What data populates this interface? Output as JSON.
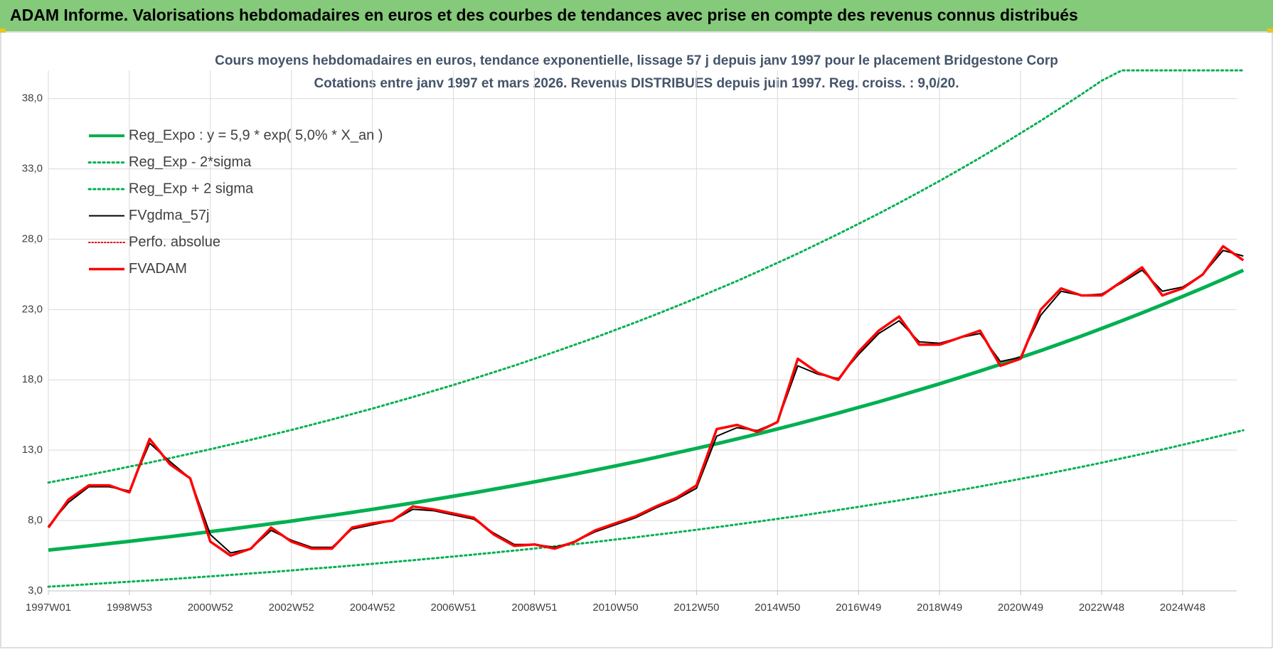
{
  "header": {
    "title": "ADAM Informe. Valorisations hebdomadaires en euros et des courbes de tendances avec prise en compte des revenus connus distribués"
  },
  "chart_data": {
    "type": "line",
    "title": "Cours moyens hebdomadaires en euros, tendance exponentielle, lissage 57 j depuis janv 1997 pour le placement Bridgestone Corp",
    "subtitle": "Cotations entre janv 1997 et mars 2026. Revenus DISTRIBUES depuis juin 1997. Reg. croiss. : 9,0/20.",
    "categories": [
      "1997W01",
      null,
      null,
      null,
      "1998W53",
      null,
      null,
      null,
      "2000W52",
      null,
      null,
      null,
      "2002W52",
      null,
      null,
      null,
      "2004W52",
      null,
      null,
      null,
      "2006W51",
      null,
      null,
      null,
      "2008W51",
      null,
      null,
      null,
      "2010W50",
      null,
      null,
      null,
      "2012W50",
      null,
      null,
      null,
      "2014W50",
      null,
      null,
      null,
      "2016W49",
      null,
      null,
      null,
      "2018W49",
      null,
      null,
      null,
      "2020W49",
      null,
      null,
      null,
      "2022W48",
      null,
      null,
      null,
      "2024W48",
      null,
      null,
      null
    ],
    "ylim": [
      3,
      40
    ],
    "yticks": [
      {
        "value": 3,
        "label": "3,0"
      },
      {
        "value": 8,
        "label": "8,0"
      },
      {
        "value": 13,
        "label": "13,0"
      },
      {
        "value": 18,
        "label": "18,0"
      },
      {
        "value": 23,
        "label": "23,0"
      },
      {
        "value": 28,
        "label": "28,0"
      },
      {
        "value": 33,
        "label": "33,0"
      },
      {
        "value": 38,
        "label": "38,0"
      }
    ],
    "grid": true,
    "legend": "top-left",
    "series": [
      {
        "name": "Reg_Expo : y = 5,9 * exp( 5,0% *  X_an )",
        "color": "#00b050",
        "style": "solid",
        "width": 5,
        "values": [
          5.9,
          6.05,
          6.2,
          6.36,
          6.52,
          6.69,
          6.85,
          7.03,
          7.21,
          7.39,
          7.58,
          7.77,
          7.96,
          8.17,
          8.37,
          8.58,
          8.8,
          9.02,
          9.25,
          9.49,
          9.73,
          9.97,
          10.23,
          10.48,
          10.75,
          11.02,
          11.3,
          11.59,
          11.88,
          12.18,
          12.49,
          12.81,
          13.13,
          13.46,
          13.8,
          14.15,
          14.51,
          14.88,
          15.26,
          15.64,
          16.04,
          16.44,
          16.86,
          17.29,
          17.72,
          18.17,
          18.63,
          19.1,
          19.59,
          20.08,
          20.59,
          21.11,
          21.65,
          22.2,
          22.76,
          23.34,
          23.93,
          24.53,
          25.15,
          25.79
        ]
      },
      {
        "name": "Reg_Exp - 2*sigma",
        "color": "#00b050",
        "style": "dotted",
        "width": 3,
        "values": [
          3.3,
          3.38,
          3.47,
          3.56,
          3.65,
          3.74,
          3.83,
          3.93,
          4.03,
          4.13,
          4.24,
          4.34,
          4.45,
          4.57,
          4.68,
          4.8,
          4.92,
          5.05,
          5.18,
          5.31,
          5.44,
          5.58,
          5.72,
          5.86,
          6.01,
          6.17,
          6.32,
          6.48,
          6.65,
          6.81,
          6.99,
          7.16,
          7.34,
          7.53,
          7.72,
          7.92,
          8.12,
          8.32,
          8.53,
          8.75,
          8.97,
          9.2,
          9.43,
          9.67,
          9.91,
          10.16,
          10.42,
          10.69,
          10.96,
          11.23,
          11.52,
          11.81,
          12.11,
          12.42,
          12.73,
          13.05,
          13.38,
          13.72,
          14.07,
          14.42
        ]
      },
      {
        "name": "Reg_Exp + 2 sigma",
        "color": "#00b050",
        "style": "dotted",
        "width": 3,
        "values": [
          10.7,
          10.97,
          11.25,
          11.53,
          11.83,
          12.12,
          12.43,
          12.75,
          13.07,
          13.4,
          13.74,
          14.09,
          14.44,
          14.81,
          15.18,
          15.57,
          15.96,
          16.37,
          16.78,
          17.21,
          17.64,
          18.09,
          18.55,
          19.01,
          19.5,
          19.99,
          20.5,
          21.01,
          21.55,
          22.09,
          22.65,
          23.23,
          23.81,
          24.42,
          25.03,
          25.67,
          26.32,
          26.98,
          27.67,
          28.37,
          29.09,
          29.82,
          30.58,
          31.35,
          32.14,
          32.96,
          33.79,
          34.65,
          35.53,
          36.42,
          37.35,
          38.29,
          39.26,
          40,
          40,
          40,
          40,
          40,
          40,
          40
        ]
      },
      {
        "name": "FVgdma_57j",
        "color": "#000000",
        "style": "solid",
        "width": 2,
        "values": [
          7.6,
          9.3,
          10.4,
          10.4,
          10.1,
          13.5,
          12.2,
          11.0,
          7.0,
          5.7,
          6.0,
          7.3,
          6.6,
          6.1,
          6.1,
          7.4,
          7.7,
          8.0,
          8.8,
          8.7,
          8.4,
          8.1,
          7.1,
          6.3,
          6.3,
          6.1,
          6.5,
          7.2,
          7.7,
          8.2,
          8.9,
          9.5,
          10.3,
          14.0,
          14.6,
          14.4,
          15.0,
          19.0,
          18.4,
          18.1,
          19.8,
          21.3,
          22.2,
          20.7,
          20.6,
          21.0,
          21.3,
          19.3,
          19.6,
          22.6,
          24.3,
          24.0,
          24.1,
          24.9,
          25.8,
          24.3,
          24.6,
          25.5,
          27.2,
          26.8
        ]
      },
      {
        "name": "Perfo. absolue",
        "color": "#e00000",
        "style": "dotted",
        "width": 2,
        "values": [
          null,
          null,
          null,
          null,
          null,
          null,
          null,
          null,
          null,
          null,
          null,
          null,
          null,
          null,
          null,
          null,
          null,
          null,
          null,
          null,
          null,
          null,
          null,
          null,
          null,
          null,
          null,
          null,
          null,
          null,
          null,
          null,
          null,
          null,
          null,
          null,
          null,
          null,
          null,
          null,
          null,
          null,
          null,
          null,
          null,
          null,
          null,
          null,
          null,
          null,
          null,
          null,
          null,
          null,
          null,
          null,
          null,
          null,
          null,
          null
        ]
      },
      {
        "name": "FVADAM",
        "color": "#ff0000",
        "style": "solid",
        "width": 3.5,
        "values": [
          7.5,
          9.5,
          10.5,
          10.5,
          10.0,
          13.8,
          12.0,
          11.0,
          6.5,
          5.5,
          6.0,
          7.5,
          6.5,
          6.0,
          6.0,
          7.5,
          7.8,
          8.0,
          9.0,
          8.8,
          8.5,
          8.2,
          7.0,
          6.2,
          6.3,
          6.0,
          6.5,
          7.3,
          7.8,
          8.3,
          9.0,
          9.6,
          10.5,
          14.5,
          14.8,
          14.3,
          15.0,
          19.5,
          18.5,
          18.0,
          20.0,
          21.5,
          22.5,
          20.5,
          20.5,
          21.0,
          21.5,
          19.0,
          19.5,
          23.0,
          24.5,
          24.0,
          24.0,
          25.0,
          26.0,
          24.0,
          24.5,
          25.5,
          27.5,
          26.5
        ]
      }
    ]
  }
}
